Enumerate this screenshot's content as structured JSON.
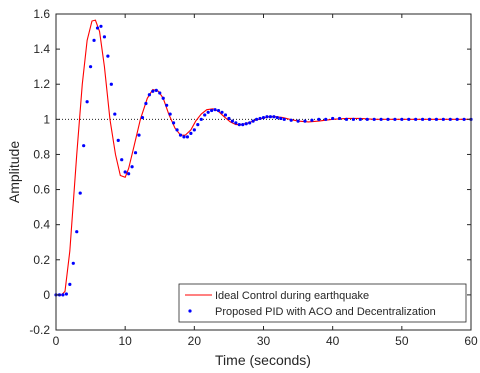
{
  "chart_data": {
    "type": "line",
    "title": "",
    "xlabel": "Time (seconds)",
    "ylabel": "Amplitude",
    "xlim": [
      0,
      60
    ],
    "ylim": [
      -0.2,
      1.6
    ],
    "xticks": [
      "0",
      "10",
      "20",
      "30",
      "40",
      "50",
      "60"
    ],
    "yticks": [
      "-0.2",
      "0",
      "0.2",
      "0.4",
      "0.6",
      "0.8",
      "1",
      "1.2",
      "1.4",
      "1.6"
    ],
    "reference_line": {
      "y": 1,
      "style": "dotted",
      "color": "#000000"
    },
    "grid": false,
    "legend_position": "bottom-right",
    "series": [
      {
        "name": "Ideal Control during earthquake",
        "style": "line",
        "color": "#ff0000",
        "x": [
          0,
          0.8,
          1.3,
          2,
          3,
          3.8,
          4.5,
          5.2,
          5.7,
          6.3,
          7,
          7.8,
          8.6,
          9.3,
          10,
          10.5,
          11.3,
          12.2,
          13.2,
          14,
          14.8,
          15.5,
          16.3,
          17.2,
          18,
          18.7,
          19.5,
          20.2,
          21,
          21.8,
          22.7,
          23.5,
          24.3,
          25.2,
          26,
          26.8,
          27.8,
          28.8,
          29.8,
          30.8,
          31.8,
          32.8,
          33.8,
          35,
          36.5,
          38,
          40,
          42,
          44,
          46,
          48,
          50,
          52,
          55,
          58,
          60
        ],
        "y": [
          0,
          0,
          0.02,
          0.25,
          0.8,
          1.2,
          1.45,
          1.56,
          1.565,
          1.5,
          1.3,
          1.0,
          0.8,
          0.68,
          0.67,
          0.72,
          0.85,
          1.0,
          1.12,
          1.17,
          1.16,
          1.12,
          1.03,
          0.95,
          0.91,
          0.91,
          0.94,
          0.99,
          1.03,
          1.055,
          1.06,
          1.045,
          1.015,
          0.985,
          0.97,
          0.97,
          0.98,
          0.995,
          1.005,
          1.015,
          1.015,
          1.01,
          1.0,
          0.99,
          0.985,
          0.99,
          1.0,
          1.005,
          1.005,
          1.0,
          1.0,
          1.0,
          1.0,
          1.0,
          1.0,
          1.0
        ]
      },
      {
        "name": "Proposed PID with ACO and Decentralization",
        "style": "dots",
        "color": "#0000ff",
        "x": [
          0,
          0.5,
          1,
          1.5,
          2,
          2.5,
          3,
          3.5,
          4,
          4.5,
          5,
          5.5,
          6,
          6.5,
          7,
          7.5,
          8,
          8.5,
          9,
          9.5,
          10,
          10.5,
          11,
          11.5,
          12,
          12.5,
          13,
          13.5,
          14,
          14.5,
          15,
          15.5,
          16,
          16.5,
          17,
          17.5,
          18,
          18.5,
          19,
          19.5,
          20,
          20.5,
          21,
          21.5,
          22,
          22.5,
          23,
          23.5,
          24,
          24.5,
          25,
          25.5,
          26,
          26.5,
          27,
          27.5,
          28,
          28.5,
          29,
          29.5,
          30,
          30.5,
          31,
          31.5,
          32,
          32.5,
          33,
          34,
          35,
          36,
          37,
          38,
          39,
          40,
          41,
          42,
          43,
          44,
          45,
          46,
          47,
          48,
          49,
          50,
          51,
          52,
          53,
          54,
          55,
          56,
          57,
          58,
          59,
          60
        ],
        "y": [
          0,
          0,
          0,
          0.005,
          0.06,
          0.18,
          0.36,
          0.58,
          0.85,
          1.1,
          1.3,
          1.45,
          1.52,
          1.53,
          1.47,
          1.36,
          1.2,
          1.03,
          0.88,
          0.77,
          0.7,
          0.69,
          0.73,
          0.81,
          0.91,
          1.01,
          1.09,
          1.14,
          1.16,
          1.165,
          1.15,
          1.12,
          1.08,
          1.03,
          0.98,
          0.94,
          0.91,
          0.9,
          0.9,
          0.92,
          0.94,
          0.97,
          1.0,
          1.025,
          1.04,
          1.05,
          1.055,
          1.05,
          1.04,
          1.025,
          1.005,
          0.99,
          0.98,
          0.97,
          0.97,
          0.975,
          0.98,
          0.99,
          1.0,
          1.005,
          1.01,
          1.015,
          1.015,
          1.015,
          1.01,
          1.005,
          1.0,
          0.995,
          0.99,
          0.99,
          0.995,
          1.0,
          1.0,
          1.005,
          1.005,
          1.0,
          1.0,
          1.0,
          1.0,
          1.0,
          1.0,
          1.0,
          1.0,
          1.0,
          1.0,
          1.0,
          1.0,
          1.0,
          1.0,
          1.0,
          1.0,
          1.0,
          1.0,
          1.0
        ]
      }
    ]
  }
}
